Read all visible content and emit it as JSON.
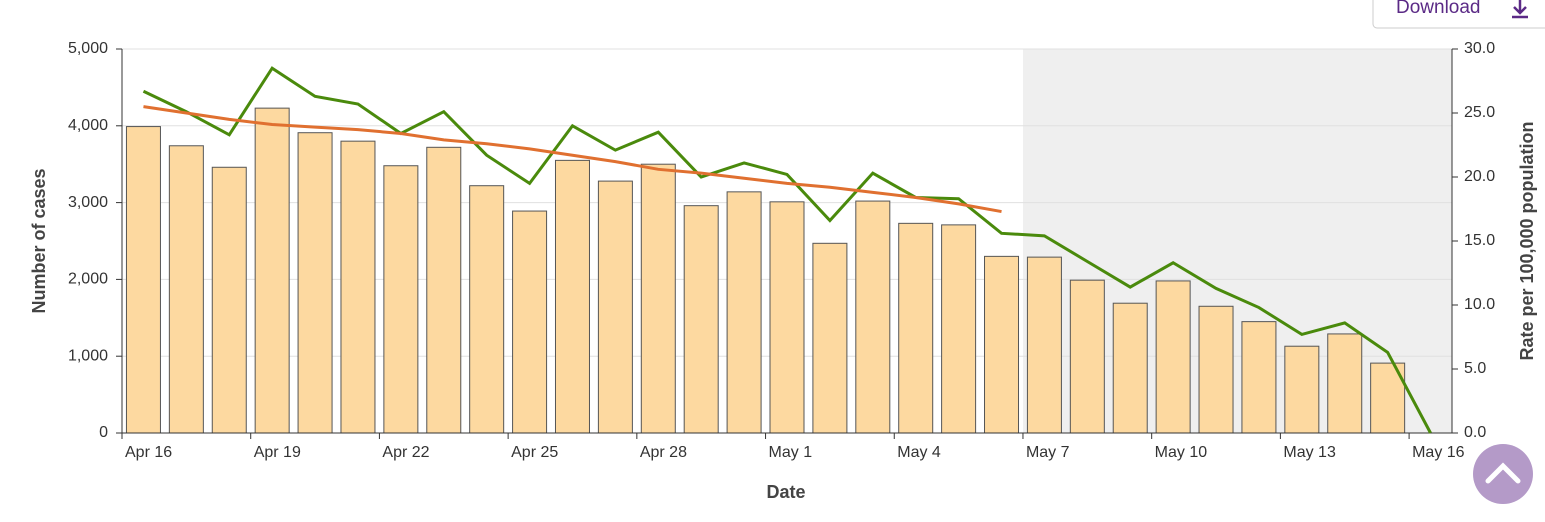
{
  "download_button": "Download",
  "chart_data": {
    "type": "bar-line",
    "x_label": "Date",
    "y_label": "Number of cases",
    "y2_label": "Rate per 100,000 population",
    "categories": [
      "Apr 16",
      null,
      null,
      "Apr 19",
      null,
      null,
      "Apr 22",
      null,
      null,
      "Apr 25",
      null,
      null,
      "Apr 28",
      null,
      null,
      "May 1",
      null,
      null,
      "May 4",
      null,
      null,
      "May 7",
      null,
      null,
      "May 10",
      null,
      null,
      "May 13",
      null,
      null,
      "May 16"
    ],
    "series": [
      {
        "type": "bar",
        "color": "#fdd9a0",
        "values": [
          3990,
          3740,
          3460,
          4230,
          3910,
          3800,
          3480,
          3720,
          3220,
          2890,
          3550,
          3280,
          3500,
          2960,
          3140,
          3010,
          2470,
          3020,
          2730,
          2710,
          2300,
          2290,
          1990,
          1690,
          1980,
          1650,
          1450,
          1130,
          1290,
          910,
          0
        ]
      },
      {
        "type": "line",
        "axis": "y2",
        "color": "#4a8a0c",
        "values": [
          26.7,
          25.1,
          23.3,
          28.5,
          26.3,
          25.7,
          23.4,
          25.1,
          21.7,
          19.5,
          24.0,
          22.1,
          23.5,
          20.0,
          21.1,
          20.2,
          16.6,
          20.3,
          18.4,
          18.3,
          15.6,
          15.4,
          13.4,
          11.4,
          13.3,
          11.3,
          9.8,
          7.7,
          8.6,
          6.3,
          0.0
        ]
      },
      {
        "type": "line",
        "axis": "y2",
        "color": "#e07030",
        "values": [
          25.5,
          25.0,
          24.5,
          24.1,
          23.9,
          23.7,
          23.4,
          22.9,
          22.6,
          22.2,
          21.7,
          21.2,
          20.6,
          20.3,
          19.9,
          19.5,
          19.2,
          18.8,
          18.4,
          17.9,
          17.3,
          null,
          null,
          null,
          null,
          null,
          null,
          null,
          null,
          null,
          null
        ]
      }
    ],
    "ylim": [
      0,
      5000
    ],
    "yticks": [
      0,
      {
        "value": 1000,
        "label": "1,000"
      },
      {
        "value": 2000,
        "label": "2,000"
      },
      {
        "value": 3000,
        "label": "3,000"
      },
      {
        "value": 4000,
        "label": "4,000"
      },
      {
        "value": 5000,
        "label": "5,000"
      }
    ],
    "y2lim": [
      0,
      30
    ],
    "y2ticks": [
      {
        "value": 0,
        "label": "0.0"
      },
      {
        "value": 5,
        "label": "5.0"
      },
      {
        "value": 10,
        "label": "10.0"
      },
      {
        "value": 15,
        "label": "15.0"
      },
      {
        "value": 20,
        "label": "20.0"
      },
      {
        "value": 25,
        "label": "25.0"
      },
      {
        "value": 30,
        "label": "30.0"
      }
    ],
    "grid": true
  }
}
